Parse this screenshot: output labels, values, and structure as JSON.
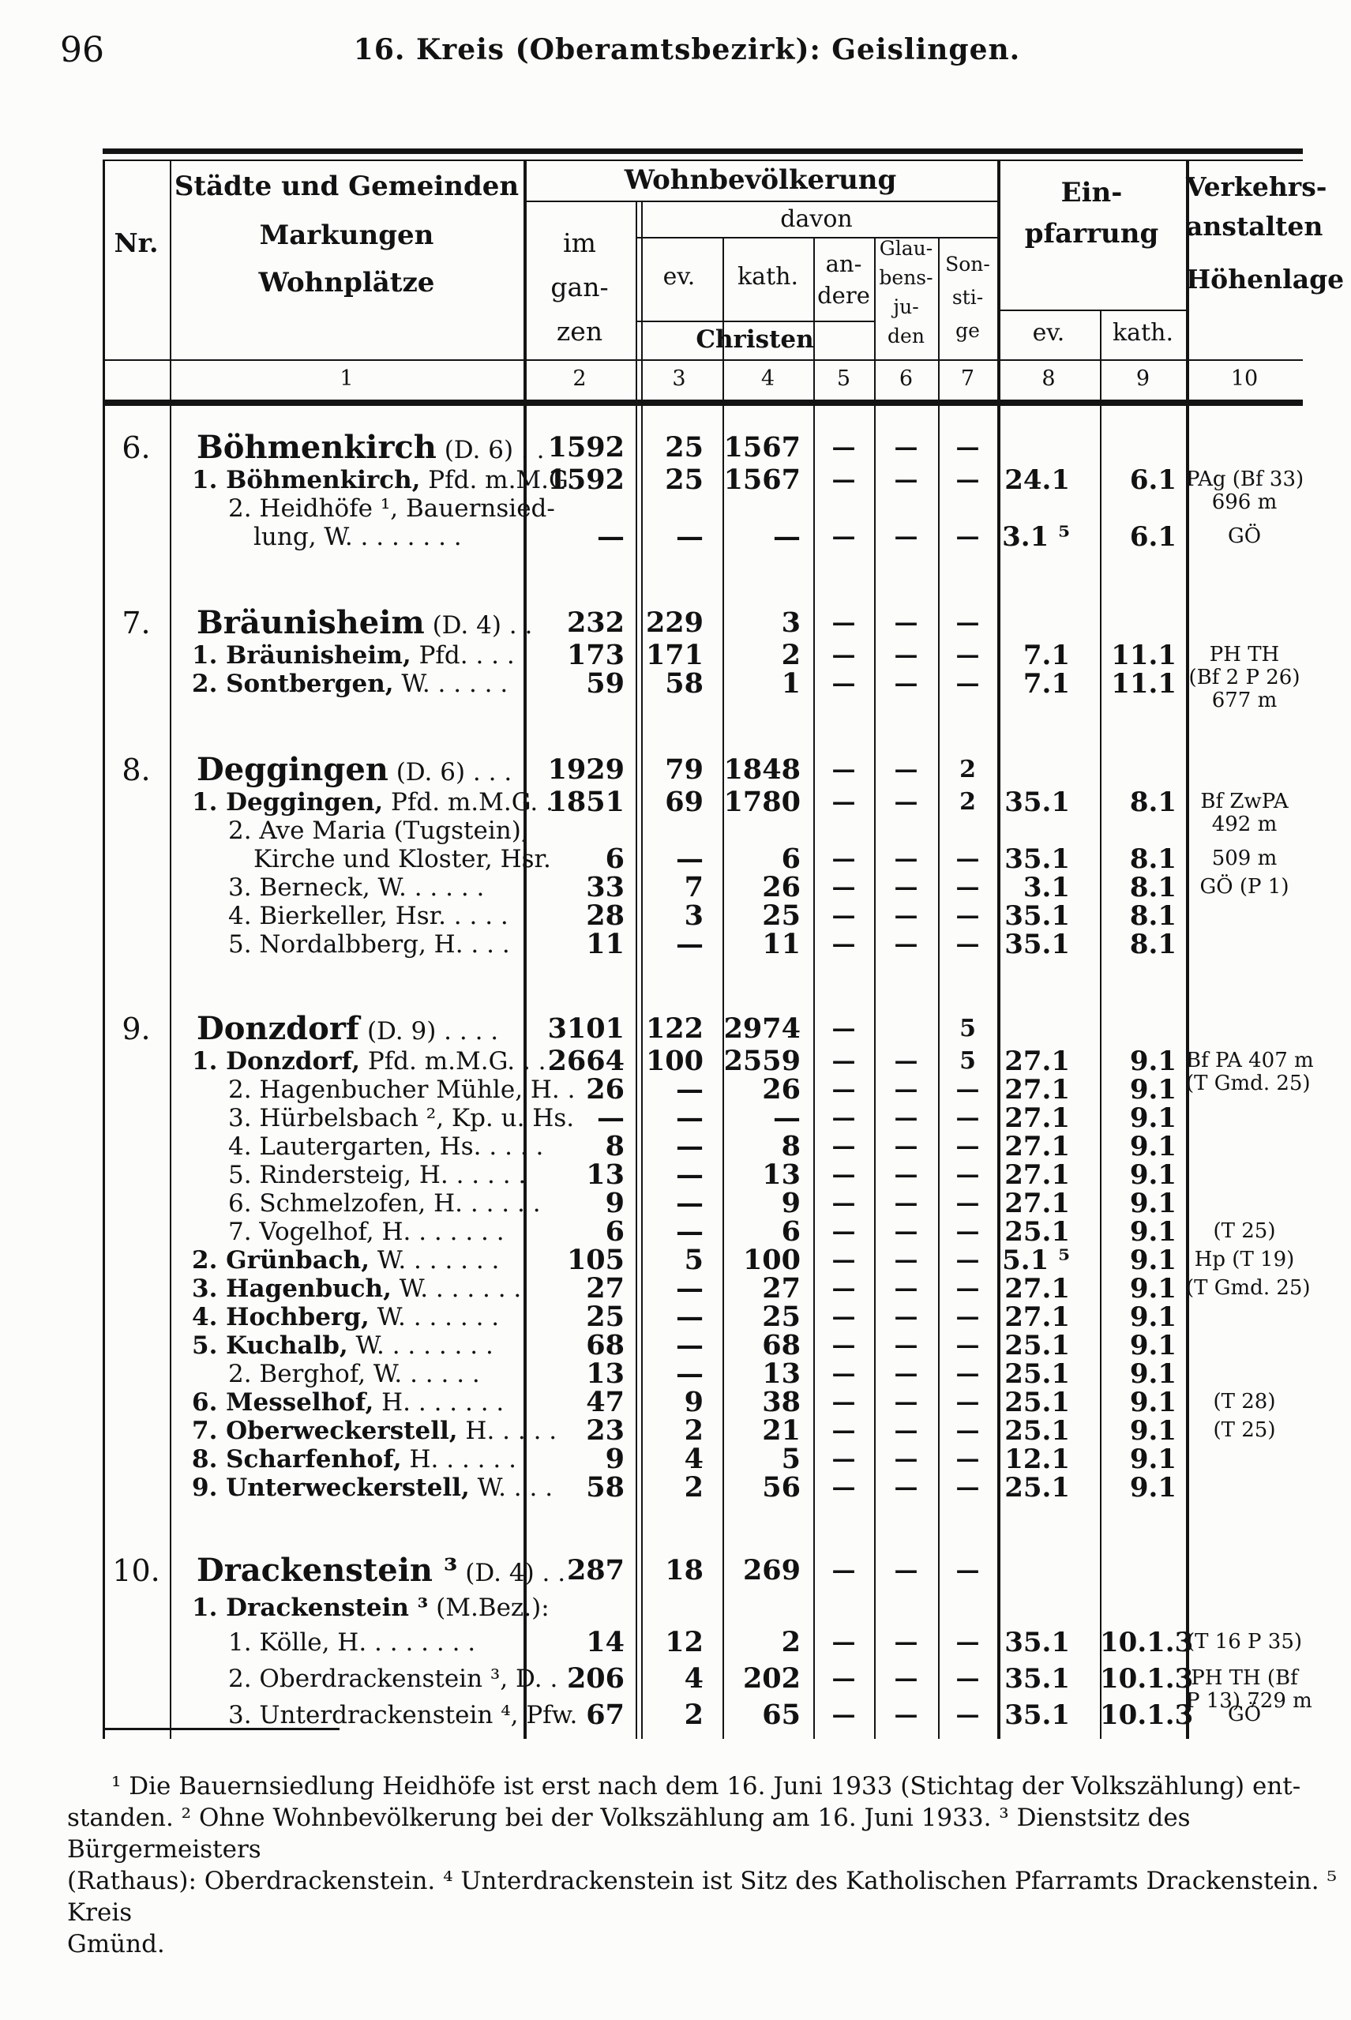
{
  "page": {
    "number": "96",
    "title": "16. Kreis (Oberamtsbezirk): Geislingen."
  },
  "header": {
    "nr": "Nr.",
    "col1": [
      "Städte und Gemeinden",
      "Markungen",
      "Wohnplätze"
    ],
    "wohnbev": "Wohnbevölkerung",
    "davon": "davon",
    "im_ganzen": [
      "im",
      "gan-",
      "zen"
    ],
    "ev": "ev.",
    "kath": "kath.",
    "andere": [
      "an-",
      "dere"
    ],
    "juden": [
      "Glau-",
      "bens-",
      "ju-",
      "den"
    ],
    "sonstige": [
      "Son-",
      "sti-",
      "ge"
    ],
    "christen": "Christen",
    "einpfarrung": [
      "Ein-",
      "pfarrung"
    ],
    "einpf_ev": "ev.",
    "einpf_kath": "kath.",
    "verkehr": [
      "Verkehrs-",
      "anstalten"
    ],
    "hoehenlage": "Höhenlage",
    "colnums": [
      "1",
      "2",
      "3",
      "4",
      "5",
      "6",
      "7",
      "8",
      "9",
      "10"
    ]
  },
  "rows": [
    {
      "nr": "6.",
      "nb": "Böhmenkirch",
      "nx": " (D. 6)  . .",
      "lvl": 0,
      "gap": 26,
      "c2": "1592",
      "c3": "25",
      "c4": "1567",
      "c5": "—",
      "c6": "—",
      "c7": "—",
      "e8": "",
      "e9": "",
      "v": []
    },
    {
      "nr": "",
      "nb": "1. Böhmenkirch,",
      "nx": "  Pfd. m.M.G.",
      "lvl": 1,
      "gap": 0,
      "c2": "1592",
      "c3": "25",
      "c4": "1567",
      "c5": "—",
      "c6": "—",
      "c7": "—",
      "e8": "24.1",
      "e9": "6.1",
      "v": [
        "PAg (Bf 33)",
        "696 m"
      ]
    },
    {
      "nr": "",
      "nb": "",
      "nx": "2. Heidhöfe ¹,  Bauernsied-",
      "lvl": 2,
      "gap": 0,
      "c2": "",
      "c3": "",
      "c4": "",
      "c5": "",
      "c6": "",
      "c7": "",
      "e8": "",
      "e9": "",
      "v": []
    },
    {
      "nr": "",
      "nb": "",
      "nx": "lung, W. .  .  .  .  .  .  .",
      "lvl": 3,
      "gap": 0,
      "c2": "—",
      "c3": "—",
      "c4": "—",
      "c5": "—",
      "c6": "—",
      "c7": "—",
      "e8": "3.1 ⁵",
      "e9": "6.1",
      "v": [
        "GÖ"
      ]
    },
    {
      "nr": "7.",
      "nb": "Bräunisheim",
      "nx": " (D. 4)  . .",
      "lvl": 0,
      "gap": 68,
      "c2": "232",
      "c3": "229",
      "c4": "3",
      "c5": "—",
      "c6": "—",
      "c7": "—",
      "e8": "",
      "e9": "",
      "v": []
    },
    {
      "nr": "",
      "nb": "1. Bräunisheim,",
      "nx": "  Pfd. .  .  .",
      "lvl": 1,
      "gap": 0,
      "c2": "173",
      "c3": "171",
      "c4": "2",
      "c5": "—",
      "c6": "—",
      "c7": "—",
      "e8": "7.1",
      "e9": "11.1",
      "v": [
        "PH TH",
        "(Bf 2  P 26)",
        "677 m"
      ]
    },
    {
      "nr": "",
      "nb": "2. Sontbergen,",
      "nx": "  W. .  .  .  .  .",
      "lvl": 1,
      "gap": 0,
      "c2": "59",
      "c3": "58",
      "c4": "1",
      "c5": "—",
      "c6": "—",
      "c7": "—",
      "e8": "7.1",
      "e9": "11.1",
      "v": []
    },
    {
      "nr": "8.",
      "nb": "Deggingen",
      "nx": " (D. 6)  . . .",
      "lvl": 0,
      "gap": 68,
      "c2": "1929",
      "c3": "79",
      "c4": "1848",
      "c5": "—",
      "c6": "—",
      "c7": "2",
      "e8": "",
      "e9": "",
      "v": []
    },
    {
      "nr": "",
      "nb": "1. Deggingen,",
      "nx": "  Pfd. m.M.G. .",
      "lvl": 1,
      "gap": 0,
      "c2": "1851",
      "c3": "69",
      "c4": "1780",
      "c5": "—",
      "c6": "—",
      "c7": "2",
      "e8": "35.1",
      "e9": "8.1",
      "v": [
        "Bf ZwPA",
        "492 m"
      ]
    },
    {
      "nr": "",
      "nb": "",
      "nx": "2. Ave Maria (Tugstein),",
      "lvl": 2,
      "gap": 0,
      "c2": "",
      "c3": "",
      "c4": "",
      "c5": "",
      "c6": "",
      "c7": "",
      "e8": "",
      "e9": "",
      "v": []
    },
    {
      "nr": "",
      "nb": "",
      "nx": "Kirche und Kloster, Hsr.",
      "lvl": 3,
      "gap": 0,
      "c2": "6",
      "c3": "—",
      "c4": "6",
      "c5": "—",
      "c6": "—",
      "c7": "—",
      "e8": "35.1",
      "e9": "8.1",
      "v": [
        "509 m"
      ]
    },
    {
      "nr": "",
      "nb": "",
      "nx": "3. Berneck, W. .  .  .  .  .",
      "lvl": 2,
      "gap": 0,
      "c2": "33",
      "c3": "7",
      "c4": "26",
      "c5": "—",
      "c6": "—",
      "c7": "—",
      "e8": "3.1",
      "e9": "8.1",
      "v": [
        "GÖ (P 1)"
      ]
    },
    {
      "nr": "",
      "nb": "",
      "nx": "4. Bierkeller, Hsr. .  .  .  .",
      "lvl": 2,
      "gap": 0,
      "c2": "28",
      "c3": "3",
      "c4": "25",
      "c5": "—",
      "c6": "—",
      "c7": "—",
      "e8": "35.1",
      "e9": "8.1",
      "v": []
    },
    {
      "nr": "",
      "nb": "",
      "nx": "5. Nordalbberg, H.  .  .  .",
      "lvl": 2,
      "gap": 0,
      "c2": "11",
      "c3": "—",
      "c4": "11",
      "c5": "—",
      "c6": "—",
      "c7": "—",
      "e8": "35.1",
      "e9": "8.1",
      "v": []
    },
    {
      "nr": "9.",
      "nb": "Donzdorf",
      "nx": " (D. 9) . . . .",
      "lvl": 0,
      "gap": 66,
      "c2": "3101",
      "c3": "122",
      "c4": "2974",
      "c5": "—",
      "c6": "",
      "c7": "5",
      "e8": "",
      "e9": "",
      "v": []
    },
    {
      "nr": "",
      "nb": "1. Donzdorf,",
      "nx": " Pfd. m.M.G. .  .",
      "lvl": 1,
      "gap": 0,
      "c2": "2664",
      "c3": "100",
      "c4": "2559",
      "c5": "—",
      "c6": "—",
      "c7": "5",
      "e8": "27.1",
      "e9": "9.1",
      "v": [
        "Bf PA 407 m",
        "(T Gmd. 25)"
      ]
    },
    {
      "nr": "",
      "nb": "",
      "nx": "2. Hagenbucher Mühle, H. .",
      "lvl": 2,
      "gap": 0,
      "c2": "26",
      "c3": "—",
      "c4": "26",
      "c5": "—",
      "c6": "—",
      "c7": "—",
      "e8": "27.1",
      "e9": "9.1",
      "v": []
    },
    {
      "nr": "",
      "nb": "",
      "nx": "3. Hürbelsbach ², Kp. u. Hs.",
      "lvl": 2,
      "gap": 0,
      "c2": "—",
      "c3": "—",
      "c4": "—",
      "c5": "—",
      "c6": "—",
      "c7": "—",
      "e8": "27.1",
      "e9": "9.1",
      "v": []
    },
    {
      "nr": "",
      "nb": "",
      "nx": "4. Lautergarten, Hs. .  .  .  .",
      "lvl": 2,
      "gap": 0,
      "c2": "8",
      "c3": "—",
      "c4": "8",
      "c5": "—",
      "c6": "—",
      "c7": "—",
      "e8": "27.1",
      "e9": "9.1",
      "v": []
    },
    {
      "nr": "",
      "nb": "",
      "nx": "5. Rindersteig, H. .  .  .  .  .",
      "lvl": 2,
      "gap": 0,
      "c2": "13",
      "c3": "—",
      "c4": "13",
      "c5": "—",
      "c6": "—",
      "c7": "—",
      "e8": "27.1",
      "e9": "9.1",
      "v": []
    },
    {
      "nr": "",
      "nb": "",
      "nx": "6. Schmelzofen, H. .  .  .  .  .",
      "lvl": 2,
      "gap": 0,
      "c2": "9",
      "c3": "—",
      "c4": "9",
      "c5": "—",
      "c6": "—",
      "c7": "—",
      "e8": "27.1",
      "e9": "9.1",
      "v": []
    },
    {
      "nr": "",
      "nb": "",
      "nx": "7. Vogelhof, H. .  .  .  .  .  .",
      "lvl": 2,
      "gap": 0,
      "c2": "6",
      "c3": "—",
      "c4": "6",
      "c5": "—",
      "c6": "—",
      "c7": "—",
      "e8": "25.1",
      "e9": "9.1",
      "v": [
        "(T 25)"
      ]
    },
    {
      "nr": "",
      "nb": "2. Grünbach,",
      "nx": "  W. .  .  .  .  .  .",
      "lvl": 1,
      "gap": 0,
      "c2": "105",
      "c3": "5",
      "c4": "100",
      "c5": "—",
      "c6": "—",
      "c7": "—",
      "e8": "5.1 ⁵",
      "e9": "9.1",
      "v": [
        "Hp (T 19)"
      ]
    },
    {
      "nr": "",
      "nb": "3. Hagenbuch,",
      "nx": "  W. .  .  .  .  .  .",
      "lvl": 1,
      "gap": 0,
      "c2": "27",
      "c3": "—",
      "c4": "27",
      "c5": "—",
      "c6": "—",
      "c7": "—",
      "e8": "27.1",
      "e9": "9.1",
      "v": [
        "(T Gmd. 25)"
      ]
    },
    {
      "nr": "",
      "nb": "4. Hochberg,",
      "nx": "  W.  .  .  .  .  .  .",
      "lvl": 1,
      "gap": 0,
      "c2": "25",
      "c3": "—",
      "c4": "25",
      "c5": "—",
      "c6": "—",
      "c7": "—",
      "e8": "27.1",
      "e9": "9.1",
      "v": []
    },
    {
      "nr": "",
      "nb": "5. Kuchalb,",
      "nx": "  W. .  .  .  .  .  .  .",
      "lvl": 1,
      "gap": 0,
      "c2": "68",
      "c3": "—",
      "c4": "68",
      "c5": "—",
      "c6": "—",
      "c7": "—",
      "e8": "25.1",
      "e9": "9.1",
      "v": []
    },
    {
      "nr": "",
      "nb": "",
      "nx": "2. Berghof, W. .  .  .  .  .",
      "lvl": 2,
      "gap": 0,
      "c2": "13",
      "c3": "—",
      "c4": "13",
      "c5": "—",
      "c6": "—",
      "c7": "—",
      "e8": "25.1",
      "e9": "9.1",
      "v": []
    },
    {
      "nr": "",
      "nb": "6. Messelhof,",
      "nx": "  H.  .  .  .  .  .  .",
      "lvl": 1,
      "gap": 0,
      "c2": "47",
      "c3": "9",
      "c4": "38",
      "c5": "—",
      "c6": "—",
      "c7": "—",
      "e8": "25.1",
      "e9": "9.1",
      "v": [
        "(T 28)"
      ]
    },
    {
      "nr": "",
      "nb": "7. Oberweckerstell,",
      "nx": " H. .  .  .  .",
      "lvl": 1,
      "gap": 0,
      "c2": "23",
      "c3": "2",
      "c4": "21",
      "c5": "—",
      "c6": "—",
      "c7": "—",
      "e8": "25.1",
      "e9": "9.1",
      "v": [
        "(T 25)"
      ]
    },
    {
      "nr": "",
      "nb": "8. Scharfenhof,",
      "nx": "  H. .  .  .  .  .",
      "lvl": 1,
      "gap": 0,
      "c2": "9",
      "c3": "4",
      "c4": "5",
      "c5": "—",
      "c6": "—",
      "c7": "—",
      "e8": "12.1",
      "e9": "9.1",
      "v": []
    },
    {
      "nr": "",
      "nb": "9. Unterweckerstell,",
      "nx": "  W. .  .  .",
      "lvl": 1,
      "gap": 0,
      "c2": "58",
      "c3": "2",
      "c4": "56",
      "c5": "—",
      "c6": "—",
      "c7": "—",
      "e8": "25.1",
      "e9": "9.1",
      "v": []
    },
    {
      "nr": "10.",
      "nb": "Drackenstein ³",
      "nx": " (D. 4)  . .",
      "lvl": 0,
      "gap": 64,
      "c2": "287",
      "c3": "18",
      "c4": "269",
      "c5": "—",
      "c6": "—",
      "c7": "—",
      "e8": "",
      "e9": "",
      "v": []
    },
    {
      "nr": "",
      "nb": "1. Drackenstein ³",
      "nx": " (M.Bez.):",
      "lvl": 1,
      "gap": 6,
      "c2": "",
      "c3": "",
      "c4": "",
      "c5": "",
      "c6": "",
      "c7": "",
      "e8": "",
      "e9": "",
      "v": []
    },
    {
      "nr": "",
      "nb": "",
      "nx": "1. Kölle, H.  .  .  .  .  .  .  .",
      "lvl": 2,
      "gap": 8,
      "c2": "14",
      "c3": "12",
      "c4": "2",
      "c5": "—",
      "c6": "—",
      "c7": "—",
      "e8": "35.1",
      "e9": "10.1.3",
      "v": [
        "(T 16  P 35)"
      ]
    },
    {
      "nr": "",
      "nb": "",
      "nx": "2. Oberdrackenstein ³,  D. .",
      "lvl": 2,
      "gap": 10,
      "c2": "206",
      "c3": "4",
      "c4": "202",
      "c5": "—",
      "c6": "—",
      "c7": "—",
      "e8": "35.1",
      "e9": "10.1.3",
      "v": [
        "PH TH (Bf",
        "P 13)  729 m"
      ]
    },
    {
      "nr": "",
      "nb": "",
      "nx": "3. Unterdrackenstein ⁴,  Pfw.",
      "lvl": 2,
      "gap": 10,
      "c2": "67",
      "c3": "2",
      "c4": "65",
      "c5": "—",
      "c6": "—",
      "c7": "—",
      "e8": "35.1",
      "e9": "10.1.3",
      "v": [
        "GÖ"
      ]
    }
  ],
  "footnotes": [
    "¹ Die  Bauernsiedlung  Heidhöfe  ist  erst  nach  dem  16.  Juni  1933  (Stichtag  der  Volkszählung)  ent-",
    "standen.  ²  Ohne  Wohnbevölkerung  bei  der  Volkszählung  am  16.  Juni  1933.  ³ Dienstsitz  des  Bürgermeisters",
    "(Rathaus):  Oberdrackenstein.  ⁴ Unterdrackenstein  ist  Sitz  des  Katholischen  Pfarramts  Drackenstein.  ⁵ Kreis",
    "Gmünd."
  ]
}
